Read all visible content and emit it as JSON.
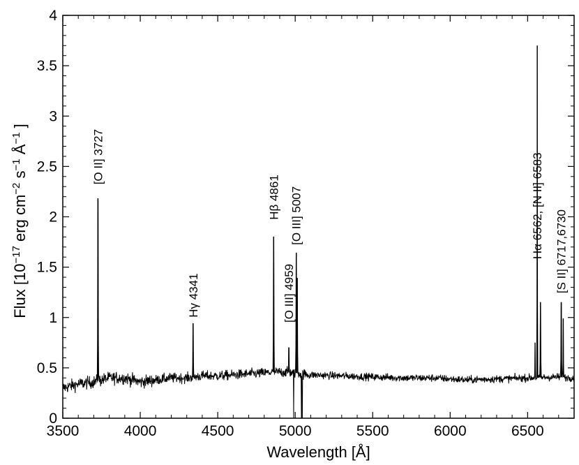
{
  "chart_data": {
    "type": "line",
    "title": "",
    "xlabel": "Wavelength [Å]",
    "ylabel": {
      "base": "Flux [10",
      "exp1": "−17",
      "mid1": " erg cm",
      "exp2": "−2",
      "mid2": " s",
      "exp3": "−1",
      "mid3": " Å",
      "exp4": "−1",
      "end": " ]"
    },
    "xlim": [
      3500,
      6800
    ],
    "ylim": [
      0,
      4
    ],
    "x_ticks": [
      3500,
      4000,
      4500,
      5000,
      5500,
      6000,
      6500
    ],
    "x_tick_labels": [
      "3500",
      "4000",
      "4500",
      "5000",
      "5500",
      "6000",
      "6500"
    ],
    "y_ticks": [
      0,
      0.5,
      1,
      1.5,
      2,
      2.5,
      3,
      3.5,
      4
    ],
    "y_tick_labels": [
      "0",
      "0.5",
      "1",
      "1.5",
      "2",
      "2.5",
      "3",
      "3.5",
      "4"
    ],
    "grid": false,
    "line_color": "#000000",
    "continuum": [
      [
        3500,
        0.3
      ],
      [
        3600,
        0.34
      ],
      [
        3700,
        0.36
      ],
      [
        3750,
        0.38
      ],
      [
        3800,
        0.4
      ],
      [
        3900,
        0.4
      ],
      [
        4000,
        0.36
      ],
      [
        4100,
        0.38
      ],
      [
        4200,
        0.4
      ],
      [
        4300,
        0.4
      ],
      [
        4400,
        0.42
      ],
      [
        4500,
        0.42
      ],
      [
        4600,
        0.43
      ],
      [
        4700,
        0.44
      ],
      [
        4800,
        0.45
      ],
      [
        4900,
        0.46
      ],
      [
        5000,
        0.45
      ],
      [
        5100,
        0.43
      ],
      [
        5300,
        0.42
      ],
      [
        5500,
        0.41
      ],
      [
        5700,
        0.4
      ],
      [
        5900,
        0.4
      ],
      [
        6100,
        0.38
      ],
      [
        6300,
        0.39
      ],
      [
        6500,
        0.4
      ],
      [
        6700,
        0.41
      ],
      [
        6800,
        0.4
      ]
    ],
    "emission_lines": [
      {
        "x": 3727,
        "peak": 2.18
      },
      {
        "x": 4341,
        "peak": 0.94
      },
      {
        "x": 4861,
        "peak": 1.8
      },
      {
        "x": 4959,
        "peak": 0.7
      },
      {
        "x": 5007,
        "peak": 1.64
      },
      {
        "x": 5013,
        "peak": 1.39
      },
      {
        "x": 6548,
        "peak": 0.75
      },
      {
        "x": 6562,
        "peak": 3.7
      },
      {
        "x": 6583,
        "peak": 1.15
      },
      {
        "x": 6717,
        "peak": 1.15
      },
      {
        "x": 6730,
        "peak": 0.99
      }
    ],
    "dips": [
      {
        "x": 4990,
        "min": 0.0
      },
      {
        "x": 5040,
        "min": 0.0
      },
      {
        "x": 5045,
        "min": 0.0
      }
    ],
    "annotations": [
      {
        "text": "[O II] 3727",
        "x": 3727,
        "y": 2.32
      },
      {
        "text": "Hγ 4341",
        "x": 4341,
        "y": 1.0
      },
      {
        "text": "Hβ 4861",
        "x": 4861,
        "y": 1.97
      },
      {
        "text": "[O III] 4959",
        "x": 4959,
        "y": 0.95
      },
      {
        "text": "[O III] 5007",
        "x": 5007,
        "y": 1.72
      },
      {
        "text": "Hα 6562, [N II] 6583",
        "x": 6562,
        "y": 1.58
      },
      {
        "text": "[S II] 6717,6730",
        "x": 6717,
        "y": 1.24
      }
    ]
  }
}
